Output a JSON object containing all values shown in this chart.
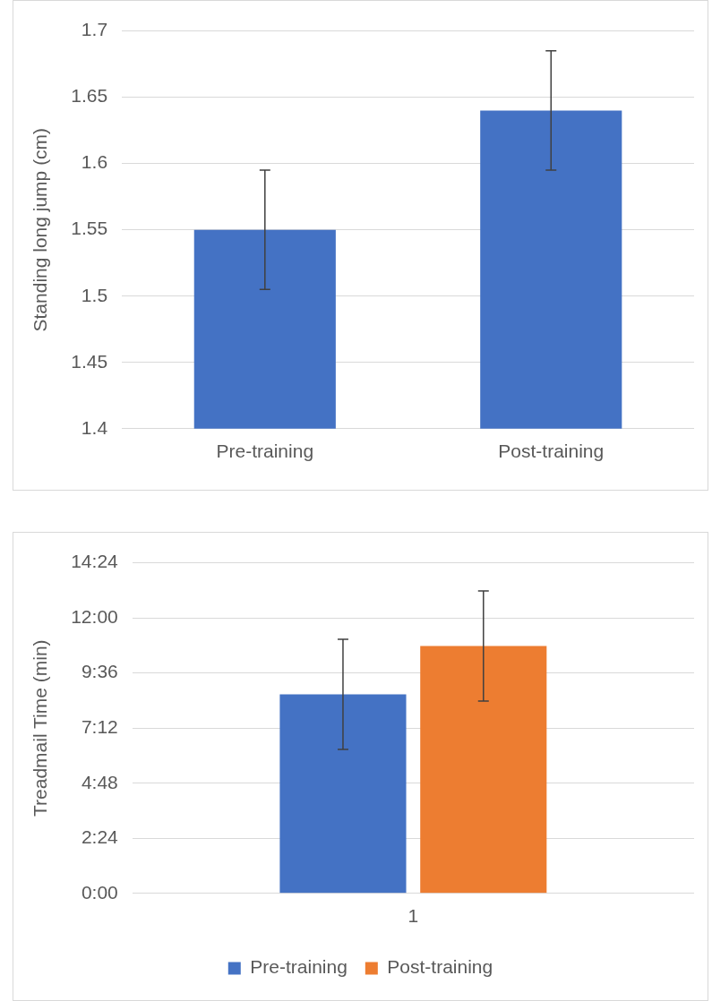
{
  "chart_data": [
    {
      "type": "bar",
      "ylabel": "Standing long jump (cm)",
      "categories": [
        "Pre-training",
        "Post-training"
      ],
      "values": [
        1.55,
        1.64
      ],
      "color": "#4472c4",
      "errors": [
        0.045,
        0.045
      ],
      "ylim": [
        1.4,
        1.7
      ],
      "yticks": [
        1.4,
        1.45,
        1.5,
        1.55,
        1.6,
        1.65,
        1.7
      ],
      "grid": "y"
    },
    {
      "type": "bar",
      "ylabel": "Treadmail Time (min)",
      "categories": [
        "1"
      ],
      "series": [
        {
          "name": "Pre-training",
          "color": "#4472c4",
          "values": [
            8.67
          ],
          "errors": [
            2.4
          ]
        },
        {
          "name": "Post-training",
          "color": "#ed7d31",
          "values": [
            10.78
          ],
          "errors": [
            2.4
          ]
        }
      ],
      "ylim": [
        0,
        14.4
      ],
      "yticks": [
        {
          "value": 0,
          "label": "0:00"
        },
        {
          "value": 2.4,
          "label": "2:24"
        },
        {
          "value": 4.8,
          "label": "4:48"
        },
        {
          "value": 7.2,
          "label": "7:12"
        },
        {
          "value": 9.6,
          "label": "9:36"
        },
        {
          "value": 12,
          "label": "12:00"
        },
        {
          "value": 14.4,
          "label": "14:24"
        }
      ],
      "grid": "y",
      "legend": "bottom"
    }
  ]
}
